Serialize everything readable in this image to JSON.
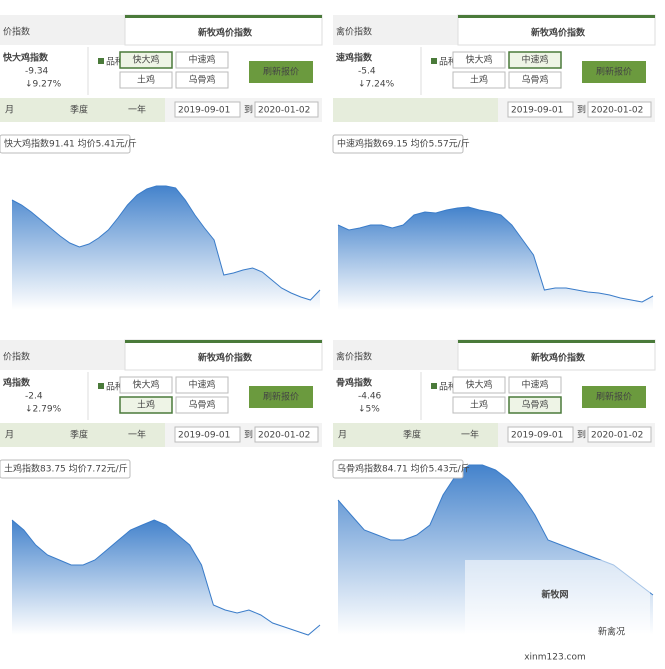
{
  "controls": {
    "title": "新牧鸡价指数",
    "breed_label": "品种",
    "breeds": [
      "快大鸡",
      "中速鸡",
      "土鸡",
      "乌骨鸡"
    ],
    "refresh": "刷新报价",
    "start": "2019-09-01",
    "to": "到",
    "end": "2020-01-02"
  },
  "panels": [
    {
      "tab": "价指数",
      "name": "快大鸡指数",
      "change": "-9.34",
      "percent": "↓9.27%",
      "selected": 0,
      "periods": [
        "月",
        "季度",
        "一年"
      ],
      "tooltip": "快大鸡指数91.41  均价5.41元/斤"
    },
    {
      "tab": "禽价指数",
      "name": "速鸡指数",
      "change": "-5.4",
      "percent": "↓7.24%",
      "selected": 1,
      "periods": [],
      "tooltip": "中速鸡指数69.15  均价5.57元/斤"
    },
    {
      "tab": "价指数",
      "name": "鸡指数",
      "change": "-2.4",
      "percent": "↓2.79%",
      "selected": 2,
      "periods": [
        "月",
        "季度",
        "一年"
      ],
      "tooltip": "土鸡指数83.75  均价7.72元/斤"
    },
    {
      "tab": "禽价指数",
      "name": "骨鸡指数",
      "change": "-4.46",
      "percent": "↓5%",
      "selected": 3,
      "periods": [
        "月",
        "季度",
        "一年"
      ],
      "tooltip": "乌骨鸡指数84.71  均价5.43元/斤"
    }
  ],
  "chart_data": [
    {
      "type": "area",
      "color": "#3a7cc9",
      "ylim": [
        0,
        130
      ],
      "values": [
        110,
        105,
        98,
        90,
        82,
        74,
        67,
        63,
        66,
        72,
        80,
        92,
        105,
        115,
        121,
        124,
        124,
        122,
        110,
        95,
        82,
        70,
        35,
        37,
        40,
        42,
        38,
        30,
        22,
        17,
        13,
        10,
        20
      ]
    },
    {
      "type": "area",
      "color": "#3a7cc9",
      "ylim": [
        0,
        130
      ],
      "values": [
        85,
        80,
        82,
        85,
        85,
        82,
        85,
        95,
        98,
        97,
        100,
        102,
        103,
        100,
        98,
        95,
        85,
        70,
        55,
        20,
        22,
        22,
        20,
        18,
        17,
        15,
        12,
        10,
        8,
        14
      ]
    },
    {
      "type": "area",
      "color": "#3a7cc9",
      "ylim": [
        0,
        130
      ],
      "values": [
        115,
        105,
        90,
        80,
        75,
        70,
        70,
        75,
        85,
        95,
        105,
        110,
        115,
        110,
        100,
        90,
        70,
        30,
        25,
        22,
        25,
        20,
        12,
        8,
        4,
        0,
        10
      ]
    },
    {
      "type": "area",
      "color": "#3a7cc9",
      "ylim": [
        0,
        175
      ],
      "values": [
        135,
        120,
        105,
        100,
        95,
        95,
        100,
        110,
        140,
        160,
        170,
        170,
        165,
        155,
        140,
        120,
        95,
        90,
        85,
        80,
        75,
        70,
        60,
        50,
        40
      ]
    }
  ],
  "watermark": {
    "logo": "新牧网",
    "account": "新禽况",
    "url": "xinm123.com"
  }
}
